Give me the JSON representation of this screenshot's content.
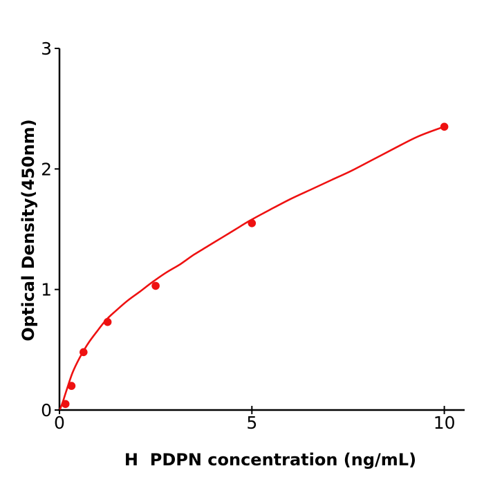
{
  "figure": {
    "background": "#ffffff"
  },
  "chart_data": {
    "type": "scatter",
    "subtype": "elisa-standard-curve-with-fit",
    "title": "",
    "xlabel": "H  PDPN concentration (ng/mL)",
    "ylabel": "Optical Density(450nm)",
    "xlim": [
      0,
      10.5
    ],
    "ylim": [
      0,
      3
    ],
    "x_ticks": [
      0,
      5,
      10
    ],
    "y_ticks": [
      0,
      1,
      2,
      3
    ],
    "grid": false,
    "legend_position": "none",
    "axis_color": "#000000",
    "accent_color": "#ee1111",
    "series": [
      {
        "name": "measured-points",
        "type": "scatter",
        "color": "#ee1111",
        "x": [
          0.156,
          0.313,
          0.625,
          1.25,
          2.5,
          5,
          10
        ],
        "y": [
          0.05,
          0.2,
          0.48,
          0.73,
          1.03,
          1.55,
          2.35
        ]
      },
      {
        "name": "fitted-curve",
        "type": "line",
        "color": "#ee1111",
        "x": [
          0.02,
          0.1,
          0.19,
          0.34,
          0.52,
          0.74,
          0.97,
          1.22,
          1.49,
          1.78,
          2.08,
          2.41,
          2.77,
          3.14,
          3.5,
          3.86,
          4.22,
          4.58,
          4.94,
          5.46,
          6.0,
          6.54,
          7.08,
          7.62,
          8.16,
          8.7,
          9.32,
          9.99
        ],
        "y": [
          0.01,
          0.08,
          0.17,
          0.31,
          0.43,
          0.55,
          0.65,
          0.75,
          0.83,
          0.91,
          0.98,
          1.06,
          1.14,
          1.21,
          1.29,
          1.36,
          1.43,
          1.5,
          1.57,
          1.66,
          1.75,
          1.83,
          1.91,
          1.99,
          2.08,
          2.17,
          2.27,
          2.35
        ]
      }
    ]
  }
}
